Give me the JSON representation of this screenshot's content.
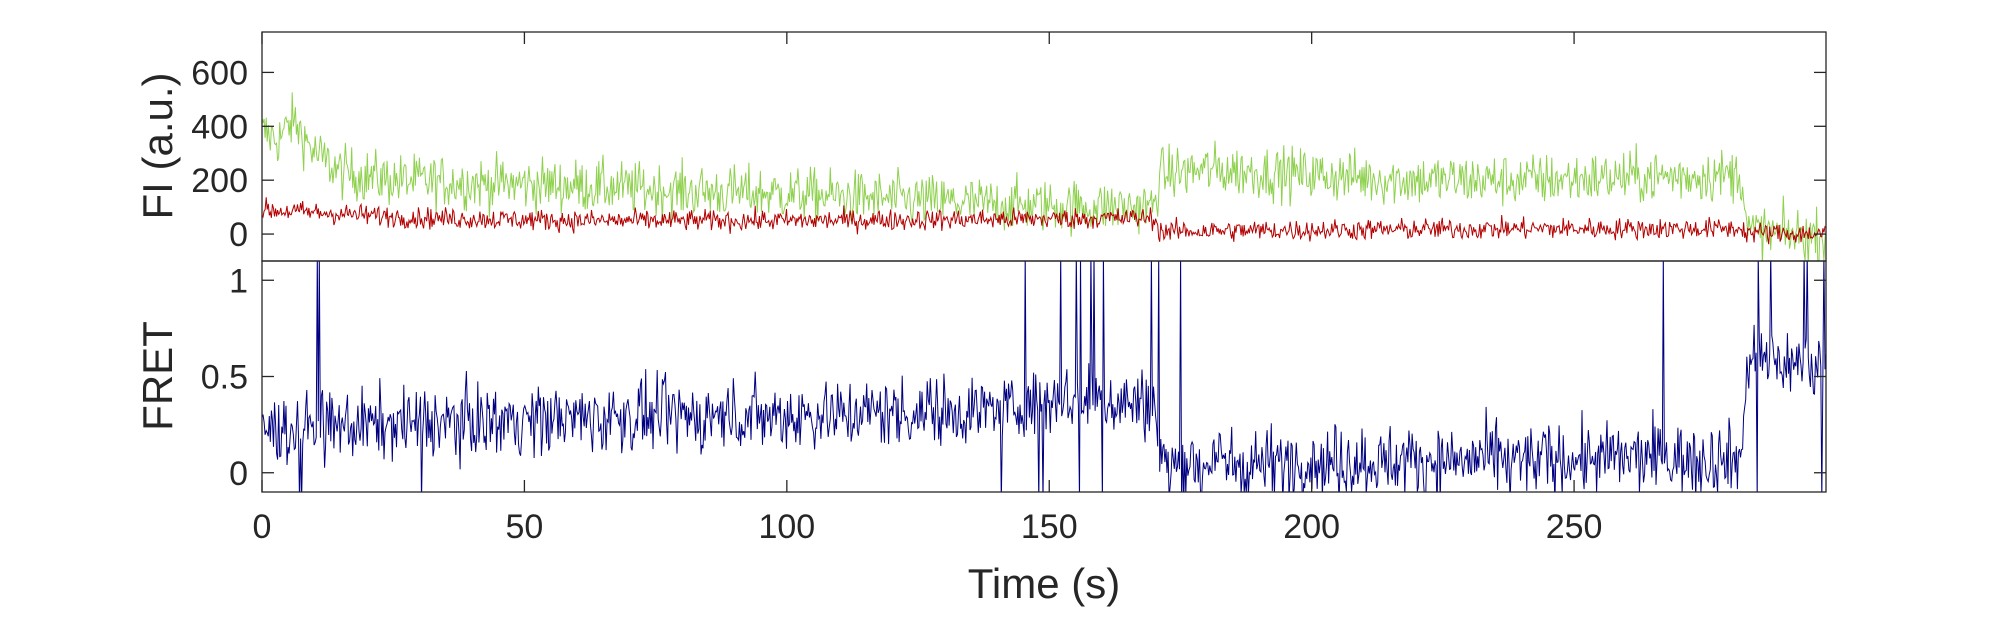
{
  "chart_data": [
    {
      "type": "line",
      "panel": "top",
      "ylabel": "FI (a.u.)",
      "xlabel": "",
      "xlim": [
        0,
        298
      ],
      "ylim": [
        -100,
        750
      ],
      "yticks": [
        0,
        200,
        400,
        600
      ],
      "grid": false,
      "legend": "none",
      "series": [
        {
          "color": "#8fd14f",
          "x": [
            0,
            3,
            6,
            10,
            15,
            25,
            40,
            60,
            80,
            100,
            120,
            140,
            160,
            170,
            171,
            180,
            200,
            220,
            240,
            260,
            282,
            283,
            290,
            298
          ],
          "y": [
            380,
            350,
            420,
            300,
            230,
            200,
            190,
            180,
            160,
            150,
            130,
            110,
            100,
            100,
            220,
            240,
            220,
            200,
            200,
            210,
            220,
            10,
            0,
            -10
          ],
          "noise": 70
        },
        {
          "color": "#b30000",
          "x": [
            0,
            10,
            30,
            60,
            100,
            140,
            170,
            171,
            200,
            240,
            282,
            283,
            298
          ],
          "y": [
            90,
            80,
            60,
            50,
            50,
            55,
            60,
            10,
            15,
            20,
            20,
            5,
            0
          ],
          "noise": 28
        }
      ]
    },
    {
      "type": "line",
      "panel": "bottom",
      "ylabel": "FRET",
      "xlabel": "Time (s)",
      "xlim": [
        0,
        298
      ],
      "ylim": [
        -0.1,
        1.1
      ],
      "yticks": [
        0,
        0.5,
        1
      ],
      "xticks": [
        0,
        50,
        100,
        150,
        200,
        250
      ],
      "grid": false,
      "legend": "none",
      "series": [
        {
          "color": "#000080",
          "x": [
            0,
            20,
            50,
            100,
            140,
            150,
            160,
            170,
            171,
            200,
            250,
            282,
            283,
            298
          ],
          "y": [
            0.22,
            0.25,
            0.28,
            0.3,
            0.33,
            0.38,
            0.38,
            0.35,
            0.05,
            0.06,
            0.07,
            0.08,
            0.6,
            0.55
          ],
          "noise": 0.13
        }
      ]
    }
  ]
}
